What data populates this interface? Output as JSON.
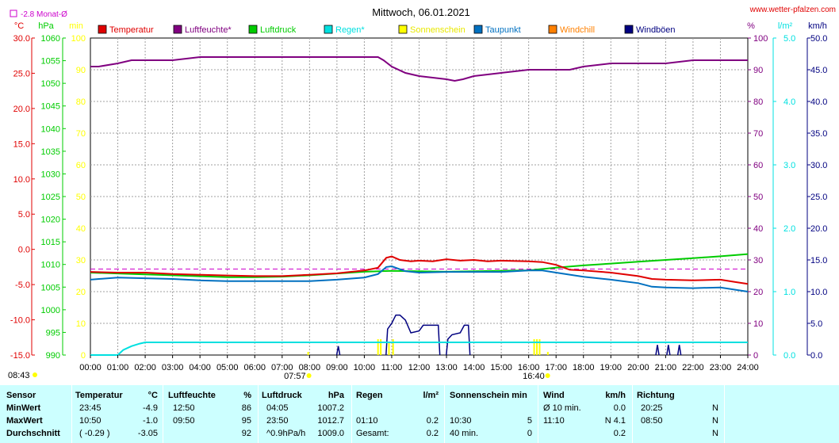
{
  "chart_data": {
    "type": "line",
    "title": "Mittwoch, 06.01.2021",
    "source": "www.wetter-pfalzen.com",
    "month_avg_label": "-2.8 Monat-Ø",
    "legend": [
      {
        "name": "Temperatur",
        "color": "#e00000"
      },
      {
        "name": "Luftfeuchte*",
        "color": "#800080"
      },
      {
        "name": "Luftdruck",
        "color": "#00cc00"
      },
      {
        "name": "Regen*",
        "color": "#00e0e0"
      },
      {
        "name": "Sonnenschein",
        "color": "#ffff00"
      },
      {
        "name": "Taupunkt",
        "color": "#0070c0"
      },
      {
        "name": "Windchill",
        "color": "#ff8000"
      },
      {
        "name": "Windböen",
        "color": "#000080"
      }
    ],
    "axes": {
      "temperature": {
        "unit": "°C",
        "ylim": [
          -15,
          30
        ],
        "ticks": [
          "30.0",
          "25.0",
          "20.0",
          "15.0",
          "10.0",
          "5.0",
          "0.0",
          "-5.0",
          "-10.0",
          "-15.0"
        ],
        "color": "#e00000"
      },
      "pressure": {
        "unit": "hPa",
        "ylim": [
          990,
          1060
        ],
        "ticks": [
          "1060",
          "1055",
          "1050",
          "1045",
          "1040",
          "1035",
          "1030",
          "1025",
          "1020",
          "1015",
          "1010",
          "1005",
          "1000",
          "995",
          "990"
        ],
        "color": "#00cc00"
      },
      "sunshine": {
        "unit": "min",
        "ylim": [
          0,
          100
        ],
        "ticks": [
          "100",
          "90",
          "80",
          "70",
          "60",
          "50",
          "40",
          "30",
          "20",
          "10",
          "0"
        ],
        "color": "#ffff00"
      },
      "humidity": {
        "unit": "%",
        "ylim": [
          0,
          100
        ],
        "ticks": [
          "100",
          "90",
          "80",
          "70",
          "60",
          "50",
          "40",
          "30",
          "20",
          "10",
          "0"
        ],
        "color": "#800080"
      },
      "rain": {
        "unit": "l/m²",
        "ylim": [
          0,
          5
        ],
        "ticks": [
          "5.0",
          "4.0",
          "3.0",
          "2.0",
          "1.0",
          "0.0"
        ],
        "color": "#00e0e0"
      },
      "wind": {
        "unit": "km/h",
        "ylim": [
          0,
          50
        ],
        "ticks": [
          "50.0",
          "45.0",
          "40.0",
          "35.0",
          "30.0",
          "25.0",
          "20.0",
          "15.0",
          "10.0",
          "5.0",
          "0.0"
        ],
        "color": "#000080"
      }
    },
    "x_ticks": [
      "00:00",
      "01:00",
      "02:00",
      "03:00",
      "04:00",
      "05:00",
      "06:00",
      "07:00",
      "08:00",
      "09:00",
      "10:00",
      "11:00",
      "12:00",
      "13:00",
      "14:00",
      "15:00",
      "16:00",
      "17:00",
      "18:00",
      "19:00",
      "20:00",
      "21:00",
      "22:00",
      "23:00",
      "24:00"
    ],
    "sunrise": "07:57",
    "sunset": "16:40",
    "time_label": "08:43",
    "month_avg_temperature": -2.8,
    "series": [
      {
        "name": "Luftfeuchte*",
        "color": "#800080",
        "axis": "humidity",
        "x": [
          0,
          0.3,
          1,
          1.5,
          2,
          3,
          4,
          5,
          6,
          7,
          8,
          9,
          10,
          10.5,
          10.7,
          11,
          11.5,
          12,
          12.5,
          13,
          13.3,
          13.6,
          14,
          15,
          16,
          17,
          17.5,
          18,
          19,
          20,
          21,
          22,
          23,
          24
        ],
        "y": [
          91,
          91,
          92,
          93,
          93,
          93,
          94,
          94,
          94,
          94,
          94,
          94,
          94,
          94,
          93,
          91,
          89,
          88,
          87.5,
          87,
          86.5,
          87,
          88,
          89,
          90,
          90,
          90,
          91,
          92,
          92,
          92,
          93,
          93,
          93
        ]
      },
      {
        "name": "Luftdruck",
        "color": "#00cc00",
        "axis": "pressure",
        "x": [
          0,
          1,
          2,
          3,
          4,
          5,
          6,
          7,
          8,
          9,
          10,
          11,
          12,
          13,
          14,
          15,
          16,
          17,
          18,
          19,
          20,
          21,
          22,
          23,
          24
        ],
        "y": [
          1008.2,
          1008.0,
          1007.8,
          1007.6,
          1007.4,
          1007.2,
          1007.2,
          1007.3,
          1007.6,
          1008.0,
          1008.4,
          1008.6,
          1008.5,
          1008.4,
          1008.5,
          1008.6,
          1008.7,
          1009.3,
          1009.8,
          1010.2,
          1010.6,
          1011.0,
          1011.4,
          1011.8,
          1012.3
        ]
      },
      {
        "name": "Temperatur",
        "color": "#e00000",
        "axis": "temperature",
        "x": [
          0,
          1,
          2,
          3,
          4,
          5,
          6,
          7,
          8,
          9,
          10,
          10.5,
          10.8,
          11,
          11.3,
          11.7,
          12,
          12.5,
          13,
          13.5,
          14,
          14.5,
          15,
          16,
          16.5,
          17,
          17.5,
          18,
          19,
          20,
          20.5,
          21,
          22,
          23,
          23.5,
          24
        ],
        "y": [
          -3.2,
          -3.3,
          -3.3,
          -3.5,
          -3.6,
          -3.7,
          -3.8,
          -3.8,
          -3.6,
          -3.4,
          -3.0,
          -2.6,
          -1.2,
          -1.0,
          -1.5,
          -1.7,
          -1.6,
          -1.7,
          -1.4,
          -1.6,
          -1.5,
          -1.7,
          -1.6,
          -1.7,
          -1.8,
          -2.2,
          -2.9,
          -3.0,
          -3.3,
          -3.8,
          -4.2,
          -4.3,
          -4.4,
          -4.3,
          -4.6,
          -4.9
        ]
      },
      {
        "name": "Taupunkt",
        "color": "#0070c0",
        "axis": "temperature",
        "x": [
          0,
          1,
          2,
          3,
          4,
          5,
          6,
          7,
          8,
          9,
          10,
          10.5,
          10.8,
          11,
          11.5,
          12,
          13,
          14,
          15,
          16,
          16.5,
          17,
          18,
          19,
          20,
          20.5,
          21,
          22,
          23,
          24
        ],
        "y": [
          -4.3,
          -4.0,
          -4.1,
          -4.2,
          -4.4,
          -4.5,
          -4.5,
          -4.5,
          -4.5,
          -4.3,
          -4.0,
          -3.5,
          -2.5,
          -2.4,
          -3.1,
          -3.3,
          -3.2,
          -3.2,
          -3.2,
          -3.0,
          -3.0,
          -3.3,
          -3.9,
          -4.3,
          -4.8,
          -5.3,
          -5.4,
          -5.5,
          -5.4,
          -6.0
        ]
      },
      {
        "name": "Regen*",
        "color": "#00e0e0",
        "axis": "rain",
        "x": [
          0,
          1,
          1.2,
          1.5,
          1.8,
          2,
          2.2,
          24
        ],
        "y": [
          0,
          0,
          0.08,
          0.14,
          0.18,
          0.2,
          0.2,
          0.2
        ]
      },
      {
        "name": "Windböen",
        "color": "#000080",
        "axis": "wind",
        "bars": true,
        "x": [
          9.05,
          10.85,
          11.0,
          11.15,
          11.3,
          11.5,
          11.7,
          12.0,
          12.15,
          12.3,
          12.5,
          12.7,
          13.05,
          13.2,
          13.5,
          13.65,
          13.8,
          20.7,
          21.1,
          21.5
        ],
        "y": [
          1.4,
          4.1,
          5.0,
          6.3,
          6.3,
          5.5,
          3.5,
          3.8,
          4.7,
          4.7,
          4.7,
          4.7,
          2.5,
          3.2,
          3.5,
          4.7,
          4.7,
          1.6,
          1.6,
          1.6
        ]
      },
      {
        "name": "Sonnenschein",
        "color": "#ffff00",
        "axis": "sunshine",
        "bars": true,
        "x": [
          7.95,
          10.5,
          10.6,
          10.9,
          11.05,
          16.2,
          16.3,
          16.4,
          16.7
        ],
        "y": [
          1,
          5,
          5,
          4,
          5,
          5,
          5,
          5,
          1
        ]
      }
    ]
  },
  "table": {
    "headers": [
      {
        "label": "Sensor"
      },
      {
        "label": "Temperatur",
        "unit": "°C"
      },
      {
        "label": "Luftfeuchte",
        "unit": "%"
      },
      {
        "label": "Luftdruck",
        "unit": "hPa"
      },
      {
        "label": "Regen",
        "unit": "l/m²"
      },
      {
        "label": "Sonnenschein min",
        "unit": ""
      },
      {
        "label": "Wind",
        "unit": "km/h"
      },
      {
        "label": "Richtung",
        "unit": ""
      }
    ],
    "rows": [
      {
        "label": "MinWert",
        "temp_time": "23:45",
        "temp_val": "-4.9",
        "hum_time": "12:50",
        "hum_val": "86",
        "press_time": "04:05",
        "press_val": "1007.2",
        "rain_time": "",
        "rain_val": "",
        "sun_time": "",
        "sun_val": "",
        "wind_time": "Ø 10 min.",
        "wind_val": "0.0",
        "dir_time": "20:25",
        "dir_val": "N"
      },
      {
        "label": "MaxWert",
        "temp_time": "10:50",
        "temp_val": "-1.0",
        "hum_time": "09:50",
        "hum_val": "95",
        "press_time": "23:50",
        "press_val": "1012.7",
        "rain_time": "01:10",
        "rain_val": "0.2",
        "sun_time": "10:30",
        "sun_val": "5",
        "wind_time": "11:10",
        "wind_val": "N 4.1",
        "dir_time": "08:50",
        "dir_val": "N"
      },
      {
        "label": "Durchschnitt",
        "temp_time": "( -0.29 )",
        "temp_val": "-3.05",
        "hum_time": "",
        "hum_val": "92",
        "press_time": "^0.9hPa/h",
        "press_val": "1009.0",
        "rain_time": "Gesamt:",
        "rain_val": "0.2",
        "sun_time": "40 min.",
        "sun_val": "0",
        "wind_time": "",
        "wind_val": "0.2",
        "dir_time": "",
        "dir_val": "N"
      }
    ]
  }
}
